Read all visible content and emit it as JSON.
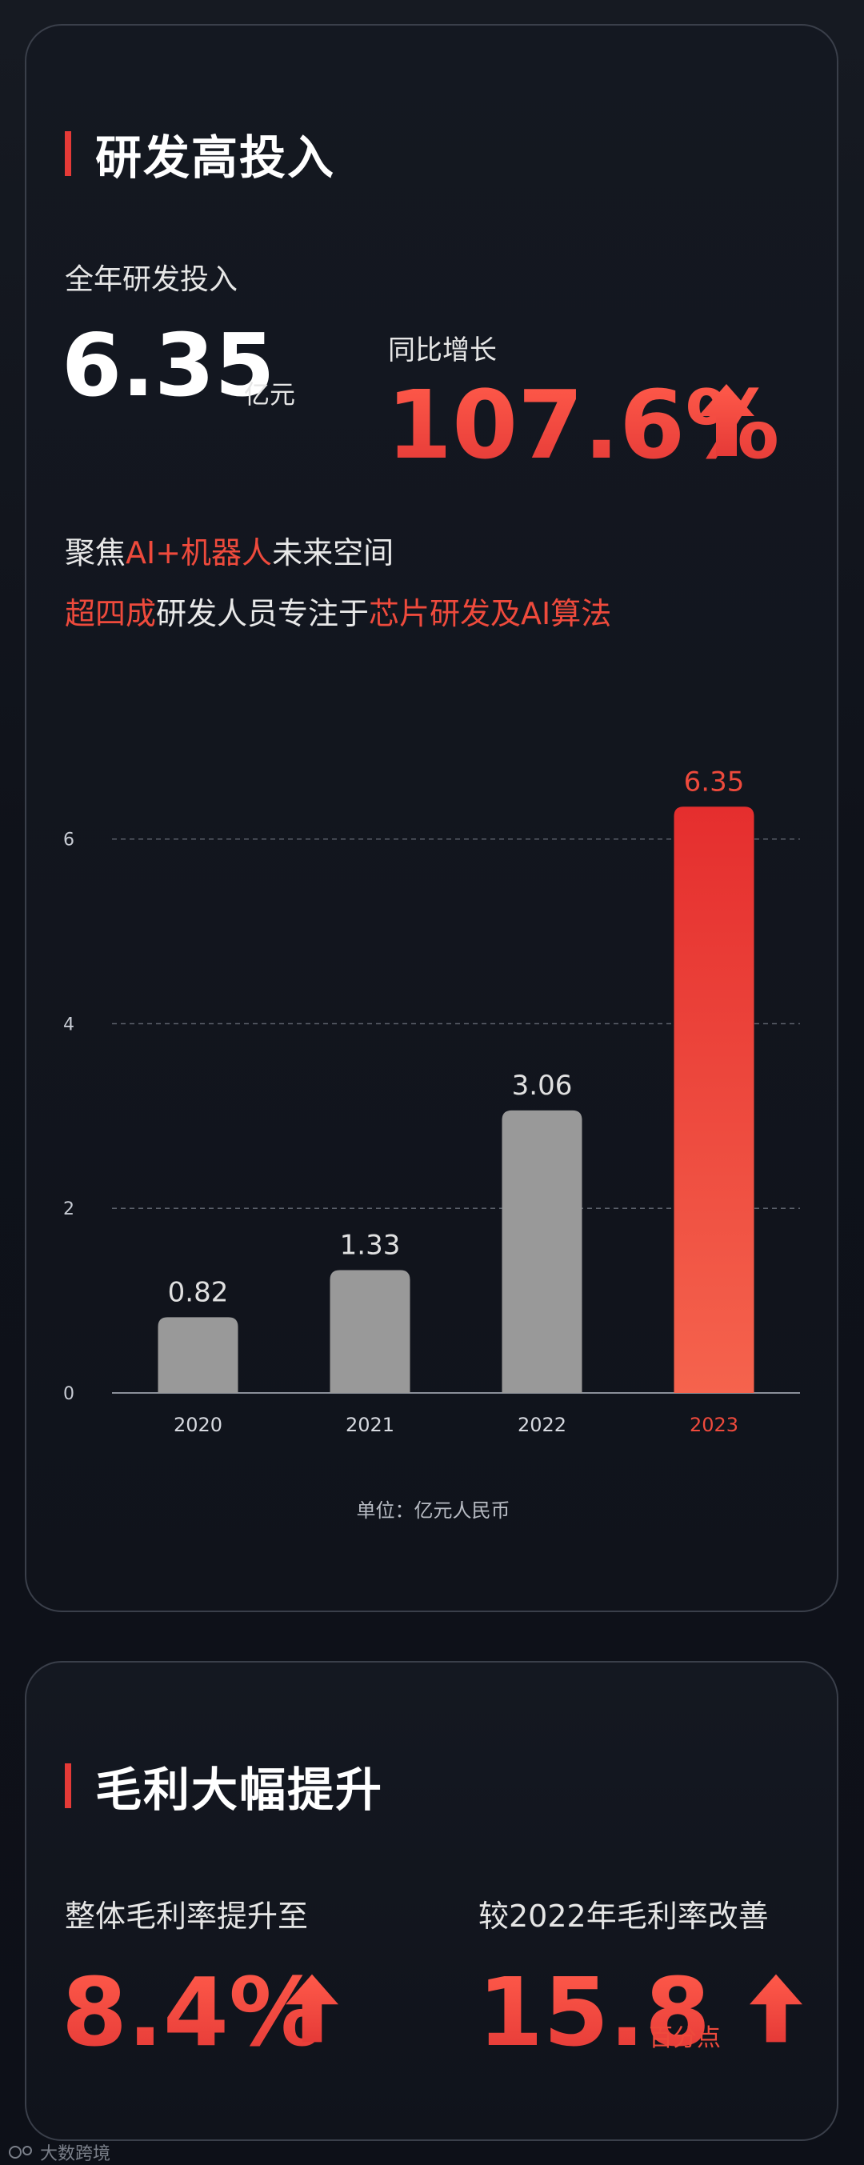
{
  "section1": {
    "title": "研发高投入",
    "total_label": "全年研发投入",
    "total_value": "6.35",
    "total_unit": "亿元",
    "yoy_label": "同比增长",
    "yoy_value": "107.6%",
    "line1": {
      "a": "聚焦",
      "b": "AI+机器人",
      "c": "未来空间"
    },
    "line2": {
      "a": "超四成",
      "b": "研发人员专注于",
      "c": "芯片研发及AI算法"
    },
    "unit_note": "单位：亿元人民币"
  },
  "chart_data": {
    "type": "bar",
    "title": "",
    "categories": [
      "2020",
      "2021",
      "2022",
      "2023"
    ],
    "values": [
      0.82,
      1.33,
      3.06,
      6.35
    ],
    "value_labels": [
      "0.82",
      "1.33",
      "3.06",
      "6.35"
    ],
    "ylim": [
      0,
      6.5
    ],
    "yticks": [
      0,
      2,
      4,
      6
    ],
    "xlabel": "",
    "ylabel": "",
    "unit": "亿元人民币",
    "grid": true,
    "highlight_index": 3,
    "colors": {
      "normal": "#999999",
      "highlight_top": "#e52e2e",
      "highlight_bottom": "#f5634d",
      "label": "#e0e0e0",
      "highlight_label": "#ee4a3c",
      "grid": "#5a5f69",
      "axis": "#8a8f99"
    }
  },
  "section2": {
    "title": "毛利大幅提升",
    "left_label": "整体毛利率提升至",
    "left_value": "8.4%",
    "right_label": "较2022年毛利率改善",
    "right_value": "15.8",
    "right_unit": "百分点"
  },
  "footer": {
    "brand": "大数跨境"
  },
  "colors": {
    "accent": "#ee4a3c",
    "background": "#0e1119",
    "card_border": "#3a3f4a"
  }
}
